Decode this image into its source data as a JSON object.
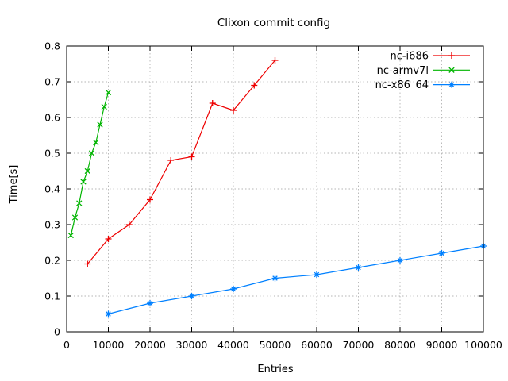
{
  "chart_data": {
    "type": "line",
    "title": "Clixon commit config",
    "xlabel": "Entries",
    "ylabel": "Time[s]",
    "xlim": [
      0,
      100000
    ],
    "ylim": [
      0,
      0.8
    ],
    "x_ticks": [
      "0",
      "10000",
      "20000",
      "30000",
      "40000",
      "50000",
      "60000",
      "70000",
      "80000",
      "90000",
      "100000"
    ],
    "y_ticks": [
      "0",
      "0.1",
      "0.2",
      "0.3",
      "0.4",
      "0.5",
      "0.6",
      "0.7",
      "0.8"
    ],
    "grid": true,
    "grid_style": "dotted",
    "legend_position": "top-right-inside",
    "series": [
      {
        "name": "nc-i686",
        "color": "#ee0000",
        "marker": "plus",
        "x": [
          5000,
          10000,
          15000,
          20000,
          25000,
          30000,
          35000,
          40000,
          45000,
          50000
        ],
        "y": [
          0.19,
          0.26,
          0.3,
          0.37,
          0.48,
          0.49,
          0.64,
          0.62,
          0.69,
          0.76
        ]
      },
      {
        "name": "nc-armv7l",
        "color": "#00b400",
        "marker": "cross",
        "x": [
          1000,
          2000,
          3000,
          4000,
          5000,
          6000,
          7000,
          8000,
          9000,
          10000
        ],
        "y": [
          0.27,
          0.32,
          0.36,
          0.42,
          0.45,
          0.5,
          0.53,
          0.58,
          0.63,
          0.67
        ]
      },
      {
        "name": "nc-x86_64",
        "color": "#0080ff",
        "marker": "asterisk",
        "x": [
          10000,
          20000,
          30000,
          40000,
          50000,
          60000,
          70000,
          80000,
          90000,
          100000
        ],
        "y": [
          0.05,
          0.08,
          0.1,
          0.12,
          0.15,
          0.16,
          0.18,
          0.2,
          0.22,
          0.24
        ]
      }
    ]
  }
}
